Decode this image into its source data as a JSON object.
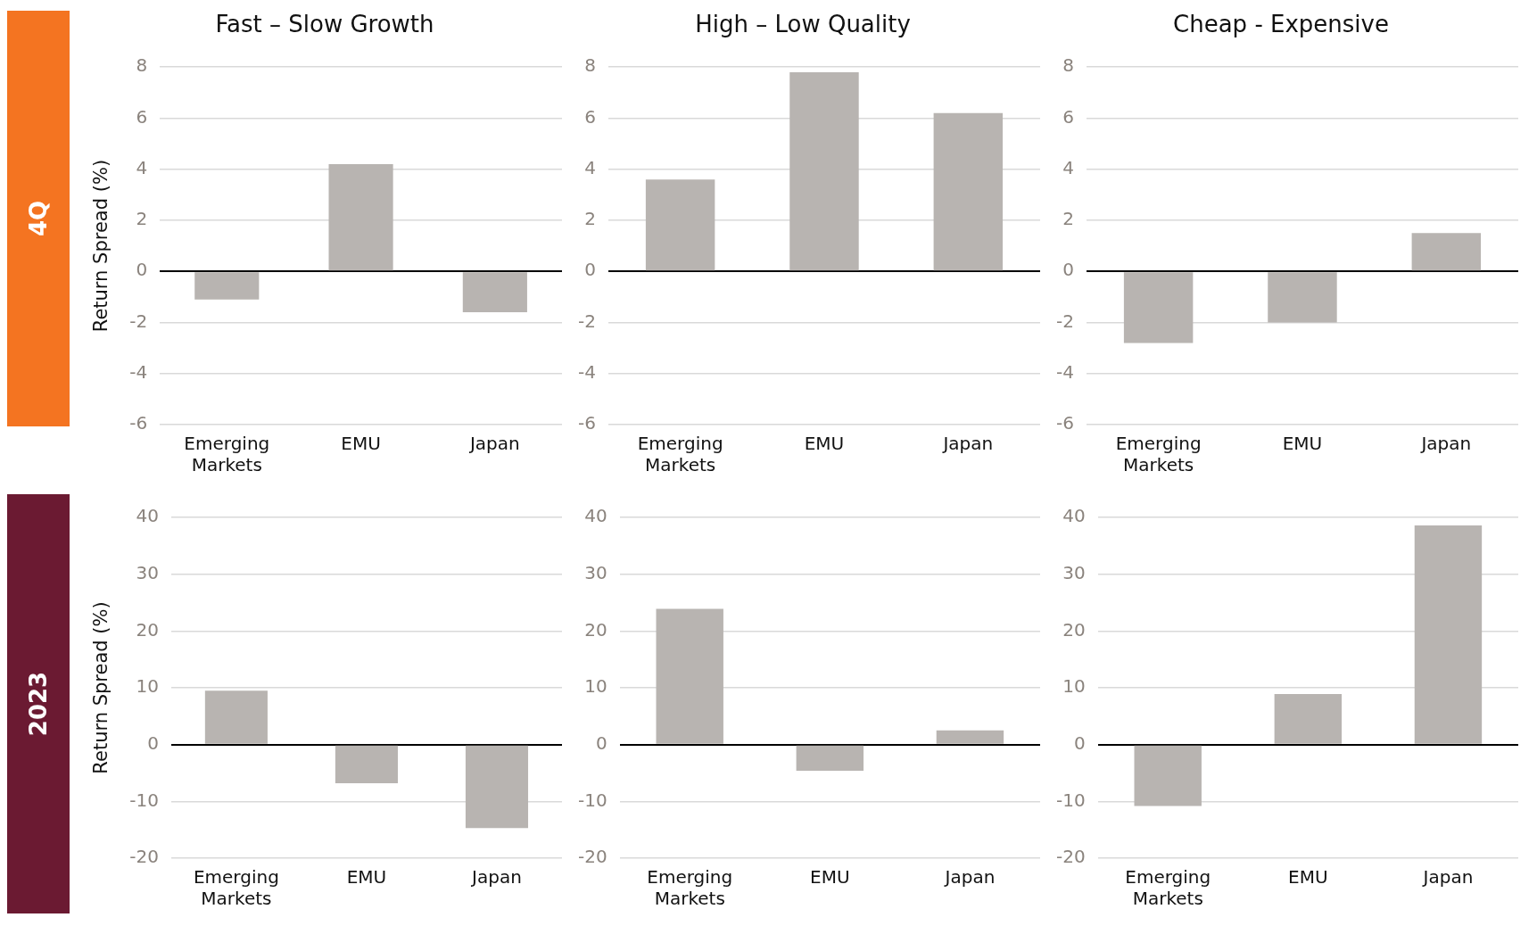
{
  "chart_data": [
    {
      "type": "bar",
      "title": "Fast – Slow Growth",
      "ylabel": "Return Spread (%)",
      "annotations": [
        "4Q"
      ],
      "categories": [
        "Emerging Markets",
        "EMU",
        "Japan"
      ],
      "values": [
        -1.1,
        4.2,
        -1.6
      ],
      "color": "#b8b4b1",
      "ylim": [
        -6,
        8
      ],
      "yticks": [
        -6,
        -4,
        -2,
        0,
        2,
        4,
        6,
        8
      ],
      "grid": "y"
    },
    {
      "type": "bar",
      "title": "High – Low Quality",
      "categories": [
        "Emerging Markets",
        "EMU",
        "Japan"
      ],
      "values": [
        3.6,
        7.8,
        6.2
      ],
      "color": "#b8b4b1",
      "ylim": [
        -6,
        8
      ],
      "yticks": [
        -6,
        -4,
        -2,
        0,
        2,
        4,
        6,
        8
      ],
      "grid": "y"
    },
    {
      "type": "bar",
      "title": "Cheap - Expensive",
      "categories": [
        "Emerging Markets",
        "EMU",
        "Japan"
      ],
      "values": [
        -2.8,
        -2.0,
        1.5
      ],
      "color": "#b8b4b1",
      "ylim": [
        -6,
        8
      ],
      "yticks": [
        -6,
        -4,
        -2,
        0,
        2,
        4,
        6,
        8
      ],
      "grid": "y"
    },
    {
      "type": "bar",
      "ylabel": "Return Spread (%)",
      "annotations": [
        "2023"
      ],
      "categories": [
        "Emerging Markets",
        "EMU",
        "Japan"
      ],
      "values": [
        9.5,
        -6.8,
        -14.7
      ],
      "color": "#b8b4b1",
      "ylim": [
        -20,
        40
      ],
      "yticks": [
        -20,
        -10,
        0,
        10,
        20,
        30,
        40
      ],
      "grid": "y"
    },
    {
      "type": "bar",
      "categories": [
        "Emerging Markets",
        "EMU",
        "Japan"
      ],
      "values": [
        23.9,
        -4.6,
        2.5
      ],
      "color": "#b8b4b1",
      "ylim": [
        -20,
        40
      ],
      "yticks": [
        -20,
        -10,
        0,
        10,
        20,
        30,
        40
      ],
      "grid": "y"
    },
    {
      "type": "bar",
      "categories": [
        "Emerging Markets",
        "EMU",
        "Japan"
      ],
      "values": [
        -10.8,
        8.9,
        38.6
      ],
      "color": "#b8b4b1",
      "ylim": [
        -20,
        40
      ],
      "yticks": [
        -20,
        -10,
        0,
        10,
        20,
        30,
        40
      ],
      "grid": "y"
    }
  ]
}
